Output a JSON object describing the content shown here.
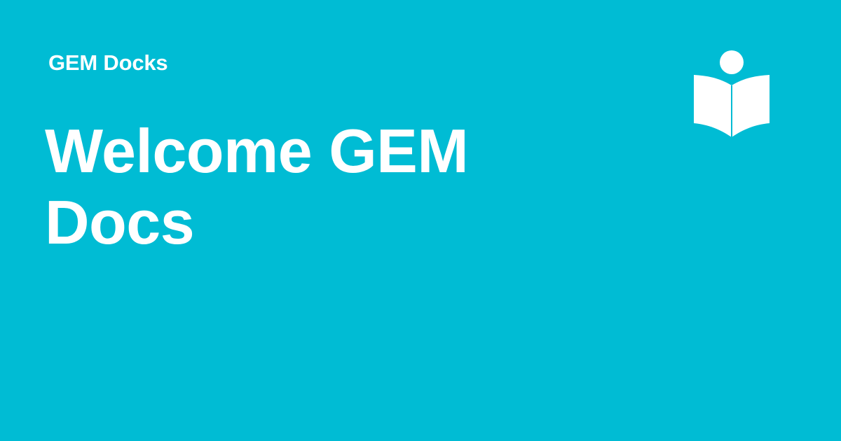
{
  "header": {
    "site_name": "GEM Docks"
  },
  "main": {
    "title": "Welcome GEM Docs"
  },
  "logo": {
    "icon": "reader-book-icon"
  },
  "colors": {
    "background": "#00BCD4",
    "foreground": "#FFFFFF"
  }
}
